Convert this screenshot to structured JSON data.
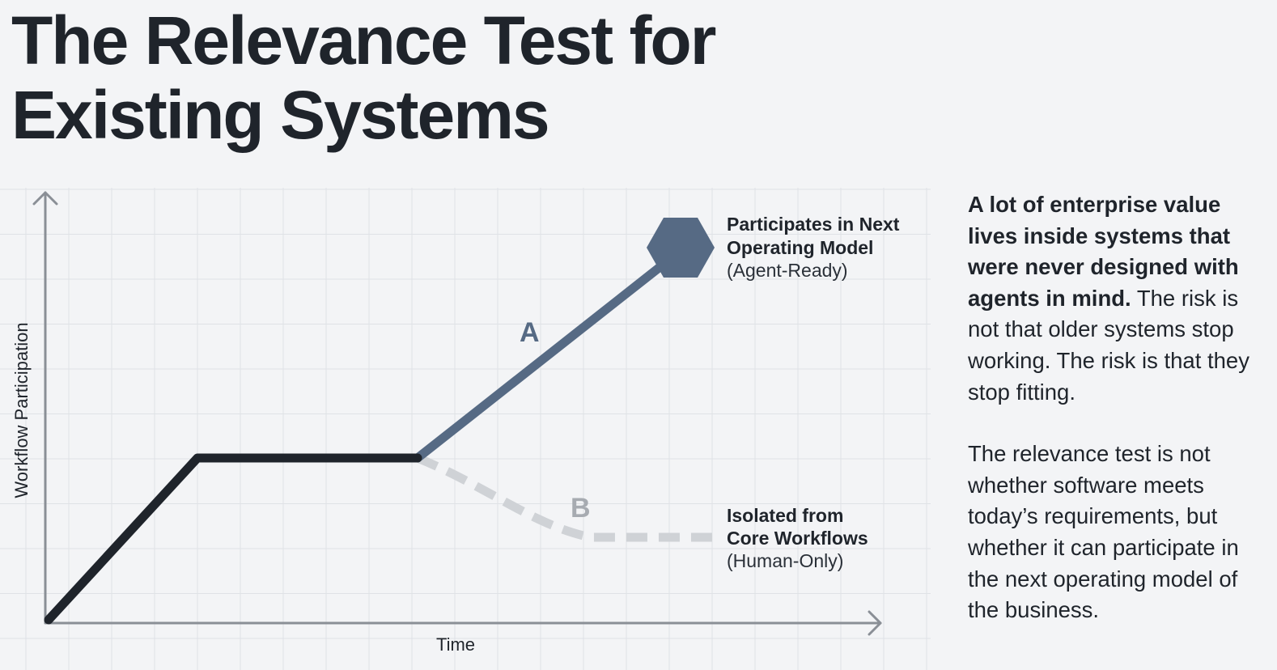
{
  "title": {
    "line1": "The Relevance Test for",
    "line2": "Existing Systems"
  },
  "diagram": {
    "y_axis_label": "Workflow Participation",
    "x_axis_label": "Time",
    "path_a": {
      "letter": "A",
      "outcome_line1": "Participates in Next",
      "outcome_line2": "Operating Model",
      "outcome_qualifier": "(Agent-Ready)",
      "marker_icon": "hexagon-icon",
      "color": "#566a84"
    },
    "path_b": {
      "letter": "B",
      "outcome_line1": "Isolated from",
      "outcome_line2": "Core Workflows",
      "outcome_qualifier": "(Human-Only)",
      "color": "#cfd2d6"
    },
    "baseline_color": "#1f242b"
  },
  "side_text": {
    "p1_bold": "A lot of enterprise value lives inside systems that were never designed with agents in mind.",
    "p1_rest": " The risk is not that older systems stop working. The risk is that they stop fitting.",
    "p2": "The relevance test is not whether software meets today’s requirements, but whether it can participate in the next operating model of the business."
  }
}
